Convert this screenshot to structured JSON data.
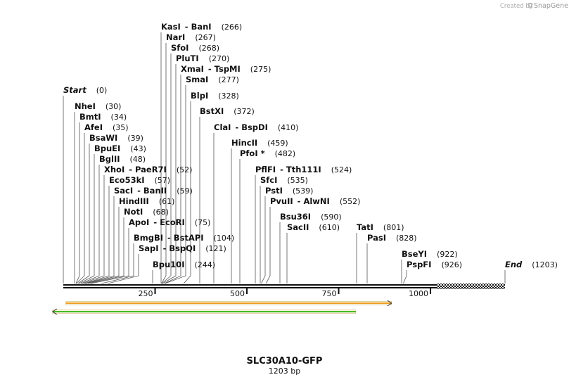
{
  "credit": {
    "prefix": "Created by",
    "brand": "SnapGene"
  },
  "title": "SLC30A10-GFP",
  "length_label": "1203 bp",
  "sequence_length": 1203,
  "ticks": [
    "250",
    "500",
    "750",
    "1000"
  ],
  "tick_values": [
    250,
    500,
    750,
    1000
  ],
  "features": [
    {
      "name": "orange-feature",
      "start": 160,
      "end": 1055,
      "color": "#f0a020",
      "direction": "forward"
    },
    {
      "name": "green-feature",
      "start": 105,
      "end": 925,
      "color": "#44bb22",
      "direction": "reverse"
    }
  ],
  "sites": [
    {
      "label": "Start",
      "pos": "(0)",
      "site": 0,
      "style": "italic"
    },
    {
      "label": "NheI",
      "pos": "(30)",
      "site": 30
    },
    {
      "label": "BmtI",
      "pos": "(34)",
      "site": 34
    },
    {
      "label": "AfeI",
      "pos": "(35)",
      "site": 35
    },
    {
      "label": "BsaWI",
      "pos": "(39)",
      "site": 39
    },
    {
      "label": "BpuEI",
      "pos": "(43)",
      "site": 43
    },
    {
      "label": "BglII",
      "pos": "(48)",
      "site": 48
    },
    {
      "label": "XhoI",
      "alt": "PaeR7I",
      "pos": "(52)",
      "site": 52
    },
    {
      "label": "Eco53kI",
      "pos": "(57)",
      "site": 57
    },
    {
      "label": "SacI",
      "alt": "BanII",
      "pos": "(59)",
      "site": 59
    },
    {
      "label": "HindIII",
      "pos": "(61)",
      "site": 61
    },
    {
      "label": "NotI",
      "pos": "(68)",
      "site": 68
    },
    {
      "label": "ApoI",
      "alt": "EcoRI",
      "pos": "(75)",
      "site": 75
    },
    {
      "label": "BmgBI",
      "alt": "BstAPI",
      "pos": "(104)",
      "site": 104
    },
    {
      "label": "SapI",
      "alt": "BspQI",
      "pos": "(121)",
      "site": 121
    },
    {
      "label": "KasI",
      "alt": "BanI",
      "pos": "(266)",
      "site": 266
    },
    {
      "label": "NarI",
      "pos": "(267)",
      "site": 267
    },
    {
      "label": "SfoI",
      "pos": "(268)",
      "site": 268
    },
    {
      "label": "PluTI",
      "pos": "(270)",
      "site": 270
    },
    {
      "label": "XmaI",
      "alt": "TspMI",
      "pos": "(275)",
      "site": 275
    },
    {
      "label": "SmaI",
      "pos": "(277)",
      "site": 277
    },
    {
      "label": "BlpI",
      "pos": "(328)",
      "site": 328
    },
    {
      "label": "BstXI",
      "pos": "(372)",
      "site": 372
    },
    {
      "label": "Bpu10I",
      "pos": "(244)",
      "site": 244
    },
    {
      "label": "ClaI",
      "alt": "BspDI",
      "pos": "(410)",
      "site": 410
    },
    {
      "label": "HincII",
      "pos": "(459)",
      "site": 459
    },
    {
      "label": "PfoI *",
      "pos": "(482)",
      "site": 482
    },
    {
      "label": "PflFI",
      "alt": "Tth111I",
      "pos": "(524)",
      "site": 524
    },
    {
      "label": "SfcI",
      "pos": "(535)",
      "site": 535
    },
    {
      "label": "PstI",
      "pos": "(539)",
      "site": 539
    },
    {
      "label": "PvuII",
      "alt": "AlwNI",
      "pos": "(552)",
      "site": 552
    },
    {
      "label": "Bsu36I",
      "pos": "(590)",
      "site": 590
    },
    {
      "label": "SacII",
      "pos": "(610)",
      "site": 610
    },
    {
      "label": "TatI",
      "pos": "(801)",
      "site": 801
    },
    {
      "label": "PasI",
      "pos": "(828)",
      "site": 828
    },
    {
      "label": "BseYI",
      "pos": "(922)",
      "site": 922
    },
    {
      "label": "PspFI",
      "pos": "(926)",
      "site": 926
    },
    {
      "label": "End",
      "pos": "(1203)",
      "site": 1203,
      "style": "italic"
    }
  ]
}
